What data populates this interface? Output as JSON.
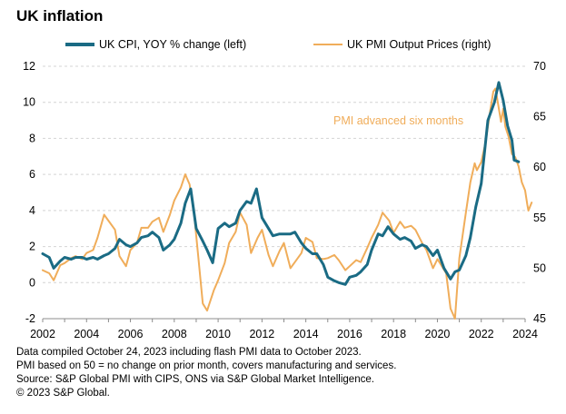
{
  "colors": {
    "cpi": "#1a6b84",
    "pmi": "#f0ad5a",
    "grid": "#d4d4d4"
  },
  "chart_data": {
    "type": "line",
    "title": "UK inflation",
    "x_ticks": [
      2002,
      2004,
      2006,
      2008,
      2010,
      2012,
      2014,
      2016,
      2018,
      2020,
      2022,
      2024
    ],
    "xlim": [
      2002,
      2024
    ],
    "y_left": {
      "ticks": [
        -2,
        0,
        2,
        4,
        6,
        8,
        10,
        12
      ],
      "range": [
        -2,
        12
      ]
    },
    "y_right": {
      "ticks": [
        45,
        50,
        55,
        60,
        65,
        70
      ],
      "range": [
        45,
        70
      ]
    },
    "gridlines": true,
    "legend_position": "top",
    "annotation": "PMI advanced six months",
    "series": [
      {
        "name": "UK CPI, YOY % change (left)",
        "axis": "left",
        "color": "#1a6b84",
        "points": [
          [
            2002.0,
            1.6
          ],
          [
            2002.3,
            1.4
          ],
          [
            2002.5,
            0.8
          ],
          [
            2002.8,
            1.2
          ],
          [
            2003.0,
            1.4
          ],
          [
            2003.3,
            1.3
          ],
          [
            2003.5,
            1.4
          ],
          [
            2003.8,
            1.4
          ],
          [
            2004.0,
            1.3
          ],
          [
            2004.3,
            1.4
          ],
          [
            2004.5,
            1.3
          ],
          [
            2004.8,
            1.5
          ],
          [
            2005.0,
            1.6
          ],
          [
            2005.3,
            1.9
          ],
          [
            2005.5,
            2.4
          ],
          [
            2005.8,
            2.1
          ],
          [
            2006.0,
            2.0
          ],
          [
            2006.3,
            2.2
          ],
          [
            2006.5,
            2.5
          ],
          [
            2006.8,
            2.6
          ],
          [
            2007.0,
            2.8
          ],
          [
            2007.3,
            2.5
          ],
          [
            2007.5,
            1.8
          ],
          [
            2007.8,
            2.1
          ],
          [
            2008.0,
            2.4
          ],
          [
            2008.3,
            3.3
          ],
          [
            2008.5,
            4.4
          ],
          [
            2008.75,
            5.2
          ],
          [
            2009.0,
            3.0
          ],
          [
            2009.3,
            2.3
          ],
          [
            2009.5,
            1.8
          ],
          [
            2009.75,
            1.1
          ],
          [
            2010.0,
            3.0
          ],
          [
            2010.3,
            3.3
          ],
          [
            2010.5,
            3.1
          ],
          [
            2010.8,
            3.3
          ],
          [
            2011.0,
            4.0
          ],
          [
            2011.3,
            4.5
          ],
          [
            2011.5,
            4.4
          ],
          [
            2011.75,
            5.2
          ],
          [
            2012.0,
            3.6
          ],
          [
            2012.3,
            3.0
          ],
          [
            2012.5,
            2.6
          ],
          [
            2012.8,
            2.7
          ],
          [
            2013.0,
            2.7
          ],
          [
            2013.3,
            2.7
          ],
          [
            2013.5,
            2.8
          ],
          [
            2013.8,
            2.2
          ],
          [
            2014.0,
            1.9
          ],
          [
            2014.3,
            1.6
          ],
          [
            2014.5,
            1.6
          ],
          [
            2014.8,
            1.0
          ],
          [
            2015.0,
            0.3
          ],
          [
            2015.3,
            0.1
          ],
          [
            2015.5,
            0.0
          ],
          [
            2015.8,
            -0.1
          ],
          [
            2016.0,
            0.3
          ],
          [
            2016.3,
            0.4
          ],
          [
            2016.5,
            0.6
          ],
          [
            2016.8,
            1.0
          ],
          [
            2017.0,
            1.8
          ],
          [
            2017.3,
            2.7
          ],
          [
            2017.5,
            2.6
          ],
          [
            2017.75,
            3.1
          ],
          [
            2018.0,
            2.7
          ],
          [
            2018.3,
            2.4
          ],
          [
            2018.5,
            2.5
          ],
          [
            2018.8,
            2.3
          ],
          [
            2019.0,
            1.9
          ],
          [
            2019.3,
            2.1
          ],
          [
            2019.5,
            2.0
          ],
          [
            2019.8,
            1.5
          ],
          [
            2020.0,
            1.8
          ],
          [
            2020.3,
            0.8
          ],
          [
            2020.6,
            0.2
          ],
          [
            2020.8,
            0.6
          ],
          [
            2021.0,
            0.7
          ],
          [
            2021.3,
            1.5
          ],
          [
            2021.5,
            2.5
          ],
          [
            2021.75,
            4.2
          ],
          [
            2022.0,
            5.5
          ],
          [
            2022.3,
            9.0
          ],
          [
            2022.6,
            10.0
          ],
          [
            2022.8,
            11.1
          ],
          [
            2023.0,
            10.1
          ],
          [
            2023.2,
            8.7
          ],
          [
            2023.4,
            7.9
          ],
          [
            2023.5,
            6.8
          ],
          [
            2023.7,
            6.7
          ]
        ]
      },
      {
        "name": "UK PMI Output Prices (right)",
        "axis": "right",
        "color": "#f0ad5a",
        "points": [
          [
            2002.0,
            49.8
          ],
          [
            2002.3,
            49.5
          ],
          [
            2002.5,
            48.8
          ],
          [
            2002.8,
            50.3
          ],
          [
            2003.0,
            50.5
          ],
          [
            2003.3,
            51.0
          ],
          [
            2003.5,
            51.2
          ],
          [
            2003.8,
            50.9
          ],
          [
            2004.0,
            51.5
          ],
          [
            2004.3,
            51.8
          ],
          [
            2004.5,
            53.0
          ],
          [
            2004.8,
            55.3
          ],
          [
            2005.0,
            54.7
          ],
          [
            2005.3,
            53.8
          ],
          [
            2005.5,
            51.2
          ],
          [
            2005.8,
            50.2
          ],
          [
            2006.0,
            51.8
          ],
          [
            2006.3,
            52.5
          ],
          [
            2006.5,
            54.0
          ],
          [
            2006.8,
            54.0
          ],
          [
            2007.0,
            54.6
          ],
          [
            2007.3,
            55.0
          ],
          [
            2007.5,
            53.6
          ],
          [
            2007.8,
            55.3
          ],
          [
            2008.0,
            56.7
          ],
          [
            2008.3,
            58.0
          ],
          [
            2008.5,
            59.3
          ],
          [
            2008.7,
            58.3
          ],
          [
            2008.9,
            55.5
          ],
          [
            2009.1,
            51.0
          ],
          [
            2009.3,
            46.5
          ],
          [
            2009.5,
            45.8
          ],
          [
            2009.8,
            47.8
          ],
          [
            2010.0,
            48.8
          ],
          [
            2010.3,
            50.5
          ],
          [
            2010.5,
            52.5
          ],
          [
            2010.8,
            53.6
          ],
          [
            2011.0,
            55.5
          ],
          [
            2011.3,
            54.3
          ],
          [
            2011.5,
            51.5
          ],
          [
            2011.8,
            53.0
          ],
          [
            2012.0,
            53.8
          ],
          [
            2012.3,
            51.3
          ],
          [
            2012.5,
            50.2
          ],
          [
            2012.8,
            51.7
          ],
          [
            2013.0,
            52.5
          ],
          [
            2013.3,
            50.0
          ],
          [
            2013.5,
            50.6
          ],
          [
            2013.8,
            51.5
          ],
          [
            2014.0,
            53.0
          ],
          [
            2014.3,
            52.6
          ],
          [
            2014.5,
            51.0
          ],
          [
            2014.8,
            50.9
          ],
          [
            2015.0,
            51.0
          ],
          [
            2015.3,
            51.3
          ],
          [
            2015.5,
            50.8
          ],
          [
            2015.8,
            49.8
          ],
          [
            2016.0,
            50.2
          ],
          [
            2016.3,
            50.8
          ],
          [
            2016.5,
            50.6
          ],
          [
            2016.8,
            52.0
          ],
          [
            2017.0,
            53.0
          ],
          [
            2017.3,
            54.3
          ],
          [
            2017.5,
            55.5
          ],
          [
            2017.8,
            54.7
          ],
          [
            2018.0,
            53.5
          ],
          [
            2018.3,
            54.6
          ],
          [
            2018.5,
            54.0
          ],
          [
            2018.8,
            54.2
          ],
          [
            2019.0,
            53.8
          ],
          [
            2019.3,
            52.5
          ],
          [
            2019.5,
            51.8
          ],
          [
            2019.8,
            50.0
          ],
          [
            2020.0,
            50.9
          ],
          [
            2020.4,
            49.5
          ],
          [
            2020.6,
            46.0
          ],
          [
            2020.8,
            45.0
          ],
          [
            2020.9,
            48.0
          ],
          [
            2021.0,
            51.0
          ],
          [
            2021.3,
            55.5
          ],
          [
            2021.5,
            58.5
          ],
          [
            2021.7,
            60.4
          ],
          [
            2021.8,
            59.7
          ],
          [
            2022.0,
            60.5
          ],
          [
            2022.2,
            62.5
          ],
          [
            2022.4,
            65.5
          ],
          [
            2022.55,
            67.5
          ],
          [
            2022.65,
            67.8
          ],
          [
            2022.75,
            66.5
          ],
          [
            2022.9,
            64.5
          ],
          [
            2023.0,
            65.8
          ],
          [
            2023.1,
            64.0
          ],
          [
            2023.25,
            63.0
          ],
          [
            2023.4,
            61.3
          ],
          [
            2023.55,
            61.0
          ],
          [
            2023.7,
            60.1
          ],
          [
            2023.85,
            58.5
          ],
          [
            2024.0,
            57.7
          ],
          [
            2024.1,
            56.3
          ],
          [
            2024.15,
            55.7
          ],
          [
            2024.3,
            56.5
          ]
        ]
      }
    ]
  },
  "footnotes": [
    "Data compiled October 24, 2023 including flash PMI data to October 2023.",
    "PMI based on 50 = no change on prior month, covers manufacturing and services.",
    "Source: S&P Global PMI with CIPS, ONS via S&P Global Market Intelligence.",
    "© 2023 S&P Global."
  ]
}
